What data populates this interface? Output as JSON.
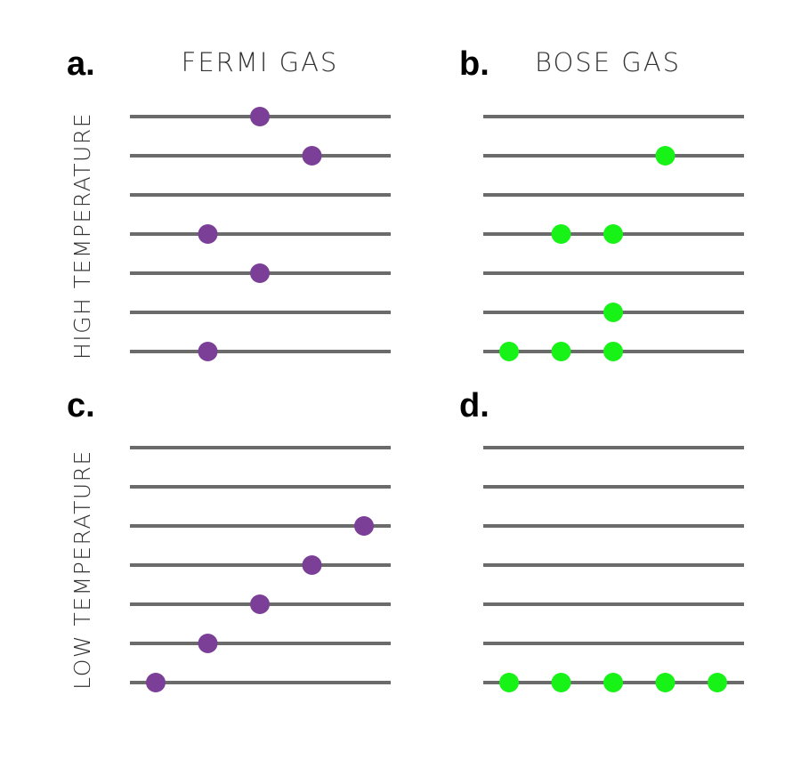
{
  "column_titles": {
    "fermi": "FERMI GAS",
    "bose": "BOSE GAS"
  },
  "row_titles": {
    "high": "HIGH TEMPERATURE",
    "low": "LOW TEMPERATURE"
  },
  "colors": {
    "fermi_particle": "#7b3f98",
    "bose_particle": "#17f217",
    "level_line": "#6b6b6b"
  },
  "levels_per_panel": 7,
  "panels": [
    {
      "id": "a",
      "label": "a.",
      "gas": "fermi",
      "temperature": "high",
      "particles": [
        {
          "level": 7,
          "slot": 3
        },
        {
          "level": 6,
          "slot": 4
        },
        {
          "level": 4,
          "slot": 2
        },
        {
          "level": 3,
          "slot": 3
        },
        {
          "level": 1,
          "slot": 2
        }
      ]
    },
    {
      "id": "b",
      "label": "b.",
      "gas": "bose",
      "temperature": "high",
      "particles": [
        {
          "level": 6,
          "slot": 4
        },
        {
          "level": 4,
          "slot": 2
        },
        {
          "level": 4,
          "slot": 3
        },
        {
          "level": 2,
          "slot": 3
        },
        {
          "level": 1,
          "slot": 1
        },
        {
          "level": 1,
          "slot": 2
        },
        {
          "level": 1,
          "slot": 3
        }
      ]
    },
    {
      "id": "c",
      "label": "c.",
      "gas": "fermi",
      "temperature": "low",
      "particles": [
        {
          "level": 5,
          "slot": 5
        },
        {
          "level": 4,
          "slot": 4
        },
        {
          "level": 3,
          "slot": 3
        },
        {
          "level": 2,
          "slot": 2
        },
        {
          "level": 1,
          "slot": 1
        }
      ]
    },
    {
      "id": "d",
      "label": "d.",
      "gas": "bose",
      "temperature": "low",
      "particles": [
        {
          "level": 1,
          "slot": 1
        },
        {
          "level": 1,
          "slot": 2
        },
        {
          "level": 1,
          "slot": 3
        },
        {
          "level": 1,
          "slot": 4
        },
        {
          "level": 1,
          "slot": 5
        }
      ]
    }
  ]
}
